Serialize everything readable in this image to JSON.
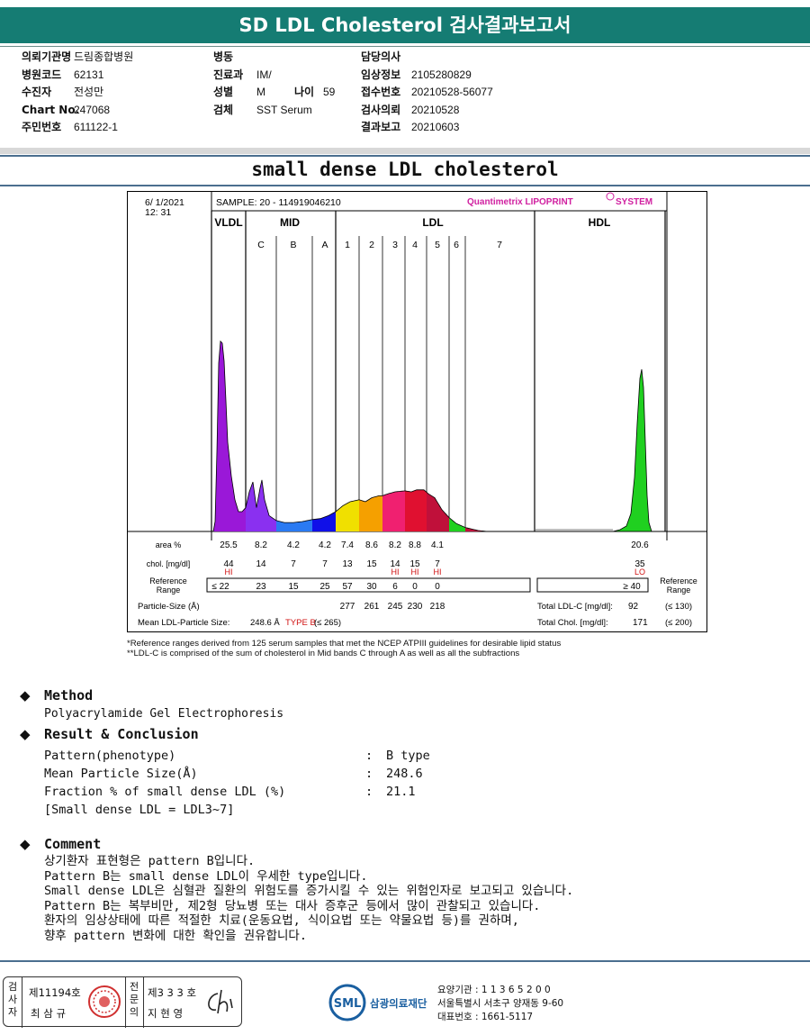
{
  "header": {
    "title": "SD LDL Cholesterol 검사결과보고서"
  },
  "patient": {
    "col1": [
      {
        "label": "의뢰기관명",
        "value": "드림종합병원"
      },
      {
        "label": "병원코드",
        "value": "62131"
      },
      {
        "label": "수진자",
        "value": "전성만"
      },
      {
        "label": "Chart No.",
        "value": "247068"
      },
      {
        "label": "주민번호",
        "value": "611122-1"
      }
    ],
    "col2": [
      {
        "label": "병동",
        "value": ""
      },
      {
        "label": "진료과",
        "value": "IM/"
      },
      {
        "label": "성별",
        "value": "M",
        "label2": "나이",
        "value2": "59"
      },
      {
        "label": "검체",
        "value": "SST Serum"
      }
    ],
    "col3": [
      {
        "label": "담당의사",
        "value": ""
      },
      {
        "label": "임상정보",
        "value": "2105280829"
      },
      {
        "label": "접수번호",
        "value": "20210528-56077"
      },
      {
        "label": "검사의뢰",
        "value": "20210528"
      },
      {
        "label": "결과보고",
        "value": "20210603"
      }
    ]
  },
  "chart_title": "small dense LDL cholesterol",
  "chart_data": {
    "type": "area",
    "date": "6/ 1/2021",
    "time": "12: 31",
    "sample": "SAMPLE:   20 - 114919046210",
    "brand": "Quantimetrix LIPOPRINT",
    "brand_suffix": "SYSTEM",
    "groups": [
      "VLDL",
      "MID",
      "LDL",
      "HDL"
    ],
    "bands": [
      "C",
      "B",
      "A",
      "1",
      "2",
      "3",
      "4",
      "5",
      "6",
      "7"
    ],
    "row_labels": {
      "area": "area %",
      "chol": "chol. [mg/dl]",
      "ref": "Reference Range",
      "ref_right": "Reference Range",
      "particle": "Particle-Size (Å)",
      "mean": "Mean LDL-Particle Size:"
    },
    "area_pct": [
      "25.5",
      "8.2",
      "4.2",
      "4.2",
      "7.4",
      "8.6",
      "8.2",
      "8.8",
      "4.1",
      "20.6"
    ],
    "chol": [
      "44",
      "14",
      "7",
      "7",
      "13",
      "15",
      "14",
      "15",
      "7",
      "35"
    ],
    "chol_flags": [
      "HI",
      "",
      "",
      "",
      "",
      "",
      "HI",
      "HI",
      "HI",
      "LO"
    ],
    "ref_range": [
      "≤  22",
      "23",
      "15",
      "25",
      "57",
      "30",
      "6",
      "0",
      "0",
      "≥  40"
    ],
    "particle_sizes": [
      "277",
      "261",
      "245",
      "230",
      "218"
    ],
    "mean_particle": "248.6  Å",
    "type_label": "TYPE B",
    "mean_range": "(≤ 265)",
    "total_ldl_label": "Total LDL-C  [mg/dl]:",
    "total_ldl": "92",
    "total_ldl_range": "(≤ 130)",
    "total_chol_label": "Total Chol.  [mg/dl]:",
    "total_chol": "171",
    "total_chol_range": "(≤ 200)",
    "segment_colors": [
      "#9a18d8",
      "#8a30f0",
      "#2a7af2",
      "#1010e8",
      "#f0e000",
      "#f5a000",
      "#f02070",
      "#e01030",
      "#c0103a",
      "#20d020"
    ]
  },
  "footnotes": [
    "*Reference ranges derived from 125 serum samples that met the NCEP ATPIII guidelines for desirable lipid status",
    "**LDL-C is comprised of the sum of cholesterol in Mid bands C through A as well as all the subfractions"
  ],
  "method": {
    "title": "Method",
    "text": "Polyacrylamide Gel Electrophoresis"
  },
  "result": {
    "title": "Result & Conclusion",
    "rows": [
      {
        "key": "Pattern(phenotype)",
        "value": "B type"
      },
      {
        "key": "Mean Particle Size(Å)",
        "value": "248.6"
      },
      {
        "key": "Fraction % of small dense LDL (%)",
        "value": "21.1"
      }
    ],
    "note": "[Small dense LDL = LDL3~7]"
  },
  "comment": {
    "title": "Comment",
    "lines": [
      "상기환자 표현형은 pattern B입니다.",
      "Pattern B는 small dense LDL이 우세한 type입니다.",
      "Small dense LDL은 심혈관 질환의 위험도를 증가시킬 수 있는 위험인자로 보고되고 있습니다.",
      "Pattern B는 복부비만, 제2형 당뇨병 또는 대사 증후군 등에서 많이 관찰되고 있습니다.",
      "환자의 임상상태에 따른 적절한 치료(운동요법, 식이요법 또는 약물요법 등)를 권하며,",
      "향후 pattern 변화에 대한 확인을 권유합니다."
    ]
  },
  "footer": {
    "inspector_label": "검사자",
    "inspector_no": "제11194호",
    "inspector_name": "최 삼 규",
    "specialist_label": "전문의",
    "specialist_no": "제3 3 3 호",
    "specialist_name": "지 현 영",
    "logo_text": "SML",
    "org_name": "삼광의료재단",
    "code_line": "요양기관 : 1 1 3 6 5 2 0 0",
    "address": "서울특별시 서초구 양재동 9-60",
    "phone": "대표번호 : 1661-5117"
  }
}
